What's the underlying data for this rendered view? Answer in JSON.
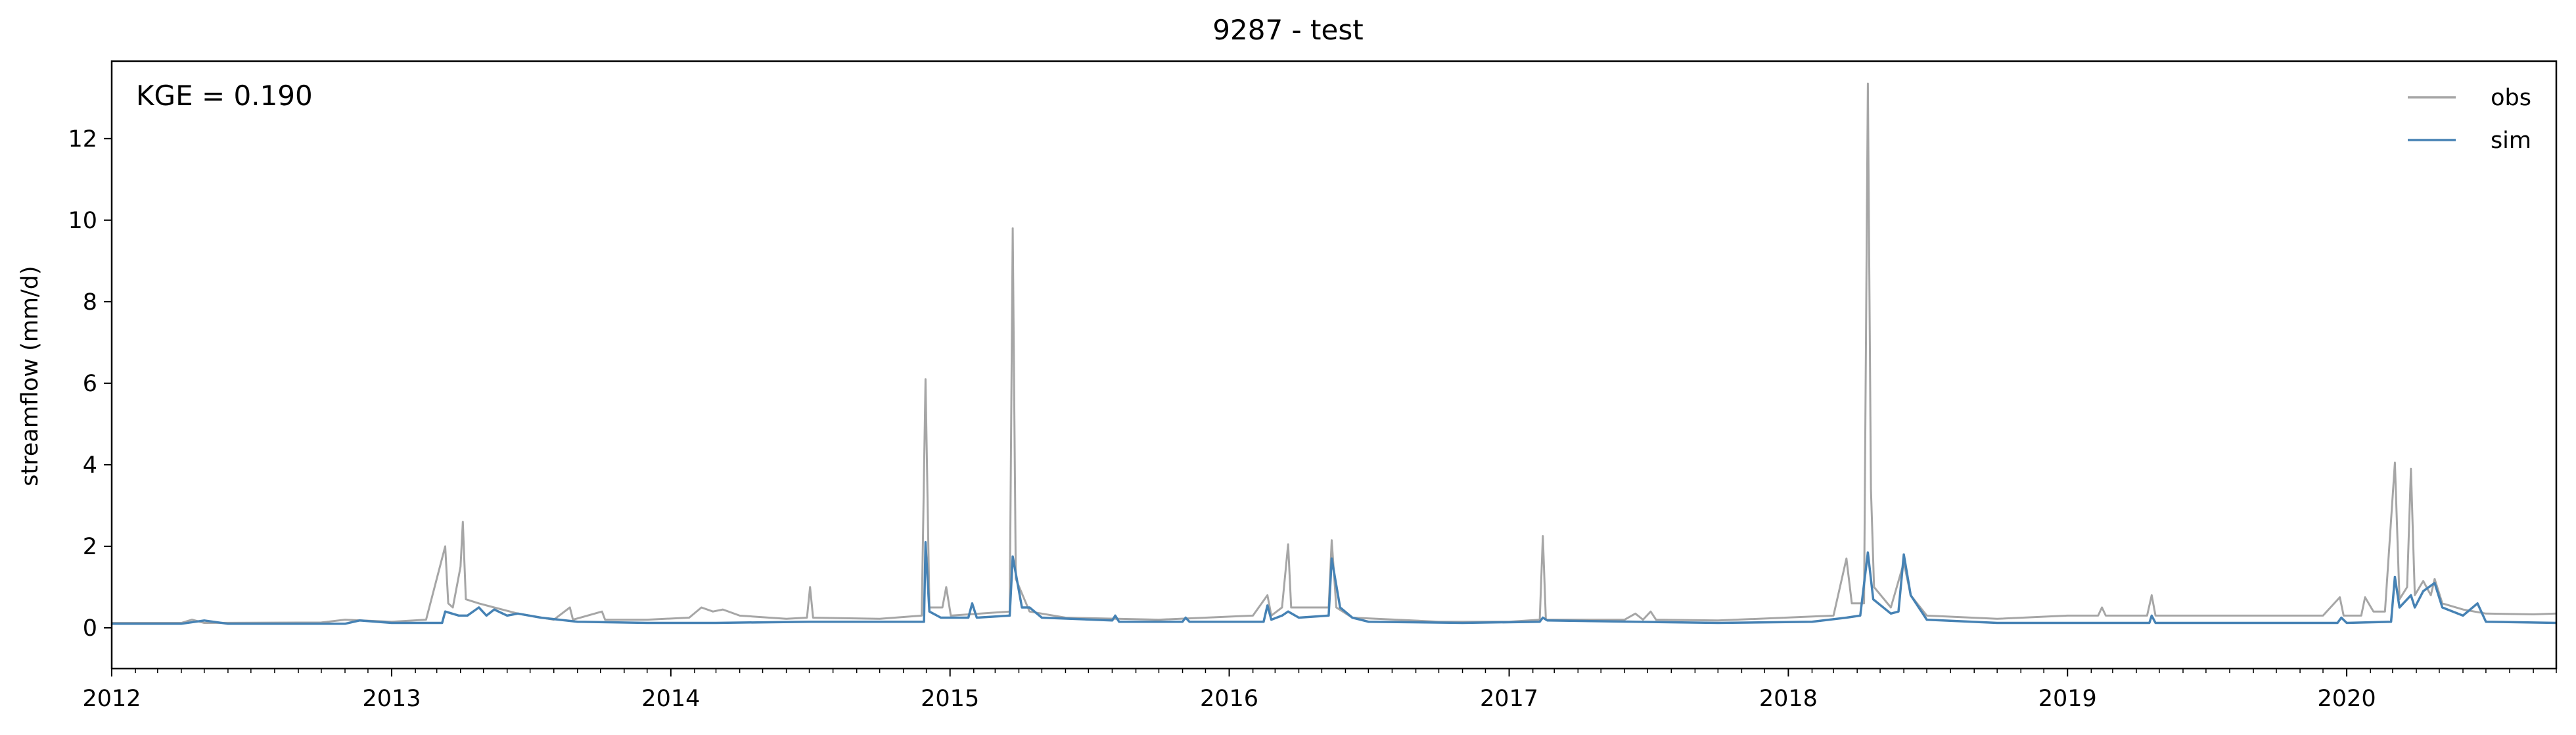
{
  "chart_data": {
    "type": "line",
    "title": "9287 - test",
    "xlabel": "",
    "ylabel": "streamflow (mm/d)",
    "annotation": "KGE = 0.190",
    "xlim": [
      "2012-01-01",
      "2020-10-01"
    ],
    "ylim": [
      -1,
      13.9
    ],
    "x_ticks": [
      "2012",
      "2013",
      "2014",
      "2015",
      "2016",
      "2017",
      "2018",
      "2019",
      "2020"
    ],
    "y_ticks": [
      0,
      2,
      4,
      6,
      8,
      10,
      12
    ],
    "grid": false,
    "legend_position": "top-right",
    "colors": {
      "obs": "#a6a6a6",
      "sim": "#4682b4"
    },
    "series": [
      {
        "name": "obs",
        "color": "#a6a6a6",
        "points": [
          [
            "2012-01-01",
            0.12
          ],
          [
            "2012-04-01",
            0.12
          ],
          [
            "2012-04-15",
            0.2
          ],
          [
            "2012-05-01",
            0.12
          ],
          [
            "2012-10-01",
            0.13
          ],
          [
            "2012-11-01",
            0.2
          ],
          [
            "2013-01-01",
            0.15
          ],
          [
            "2013-02-15",
            0.2
          ],
          [
            "2013-03-12",
            2.0
          ],
          [
            "2013-03-16",
            0.6
          ],
          [
            "2013-03-22",
            0.5
          ],
          [
            "2013-04-01",
            1.5
          ],
          [
            "2013-04-04",
            2.6
          ],
          [
            "2013-04-08",
            0.7
          ],
          [
            "2013-04-25",
            0.6
          ],
          [
            "2013-05-15",
            0.5
          ],
          [
            "2013-06-15",
            0.35
          ],
          [
            "2013-08-01",
            0.2
          ],
          [
            "2013-08-22",
            0.5
          ],
          [
            "2013-08-26",
            0.2
          ],
          [
            "2013-10-03",
            0.4
          ],
          [
            "2013-10-07",
            0.2
          ],
          [
            "2013-12-01",
            0.2
          ],
          [
            "2014-01-25",
            0.25
          ],
          [
            "2014-02-10",
            0.5
          ],
          [
            "2014-02-25",
            0.4
          ],
          [
            "2014-03-10",
            0.45
          ],
          [
            "2014-04-01",
            0.3
          ],
          [
            "2014-06-01",
            0.22
          ],
          [
            "2014-06-28",
            0.25
          ],
          [
            "2014-07-02",
            1.0
          ],
          [
            "2014-07-06",
            0.25
          ],
          [
            "2014-10-01",
            0.22
          ],
          [
            "2014-11-25",
            0.3
          ],
          [
            "2014-11-30",
            6.1
          ],
          [
            "2014-12-05",
            0.5
          ],
          [
            "2014-12-22",
            0.5
          ],
          [
            "2014-12-27",
            1.0
          ],
          [
            "2015-01-02",
            0.3
          ],
          [
            "2015-03-20",
            0.4
          ],
          [
            "2015-03-24",
            9.8
          ],
          [
            "2015-03-28",
            1.2
          ],
          [
            "2015-04-15",
            0.4
          ],
          [
            "2015-06-01",
            0.25
          ],
          [
            "2015-10-01",
            0.2
          ],
          [
            "2016-02-01",
            0.3
          ],
          [
            "2016-02-20",
            0.8
          ],
          [
            "2016-02-25",
            0.3
          ],
          [
            "2016-03-10",
            0.5
          ],
          [
            "2016-03-18",
            2.05
          ],
          [
            "2016-03-22",
            0.5
          ],
          [
            "2016-05-10",
            0.5
          ],
          [
            "2016-05-14",
            2.15
          ],
          [
            "2016-05-20",
            0.5
          ],
          [
            "2016-06-10",
            0.25
          ],
          [
            "2016-10-01",
            0.15
          ],
          [
            "2017-01-01",
            0.15
          ],
          [
            "2017-02-10",
            0.2
          ],
          [
            "2017-02-14",
            2.25
          ],
          [
            "2017-02-18",
            0.2
          ],
          [
            "2017-06-01",
            0.2
          ],
          [
            "2017-06-15",
            0.35
          ],
          [
            "2017-06-25",
            0.2
          ],
          [
            "2017-07-05",
            0.4
          ],
          [
            "2017-07-12",
            0.2
          ],
          [
            "2017-10-01",
            0.18
          ],
          [
            "2018-03-01",
            0.3
          ],
          [
            "2018-03-18",
            1.7
          ],
          [
            "2018-03-25",
            0.6
          ],
          [
            "2018-04-10",
            0.6
          ],
          [
            "2018-04-15",
            13.35
          ],
          [
            "2018-04-19",
            3.4
          ],
          [
            "2018-04-23",
            1.0
          ],
          [
            "2018-05-15",
            0.5
          ],
          [
            "2018-06-01",
            1.6
          ],
          [
            "2018-06-10",
            0.8
          ],
          [
            "2018-07-01",
            0.3
          ],
          [
            "2018-10-01",
            0.22
          ],
          [
            "2019-01-01",
            0.3
          ],
          [
            "2019-02-10",
            0.3
          ],
          [
            "2019-02-15",
            0.5
          ],
          [
            "2019-02-20",
            0.3
          ],
          [
            "2019-04-15",
            0.3
          ],
          [
            "2019-04-21",
            0.8
          ],
          [
            "2019-04-26",
            0.3
          ],
          [
            "2019-10-01",
            0.3
          ],
          [
            "2019-12-01",
            0.3
          ],
          [
            "2019-12-23",
            0.75
          ],
          [
            "2019-12-28",
            0.3
          ],
          [
            "2020-01-20",
            0.3
          ],
          [
            "2020-01-25",
            0.75
          ],
          [
            "2020-02-05",
            0.4
          ],
          [
            "2020-02-20",
            0.4
          ],
          [
            "2020-03-04",
            4.05
          ],
          [
            "2020-03-10",
            0.7
          ],
          [
            "2020-03-20",
            1.0
          ],
          [
            "2020-03-25",
            3.9
          ],
          [
            "2020-03-30",
            0.8
          ],
          [
            "2020-04-10",
            1.15
          ],
          [
            "2020-04-20",
            0.8
          ],
          [
            "2020-04-25",
            1.2
          ],
          [
            "2020-05-05",
            0.6
          ],
          [
            "2020-06-01",
            0.45
          ],
          [
            "2020-07-01",
            0.35
          ],
          [
            "2020-09-01",
            0.33
          ],
          [
            "2020-10-01",
            0.35
          ]
        ]
      },
      {
        "name": "sim",
        "color": "#4682b4",
        "points": [
          [
            "2012-01-01",
            0.1
          ],
          [
            "2012-04-01",
            0.1
          ],
          [
            "2012-05-01",
            0.18
          ],
          [
            "2012-06-01",
            0.1
          ],
          [
            "2012-11-01",
            0.1
          ],
          [
            "2012-11-20",
            0.18
          ],
          [
            "2013-01-01",
            0.12
          ],
          [
            "2013-03-08",
            0.12
          ],
          [
            "2013-03-12",
            0.4
          ],
          [
            "2013-03-30",
            0.3
          ],
          [
            "2013-04-10",
            0.3
          ],
          [
            "2013-04-25",
            0.5
          ],
          [
            "2013-05-05",
            0.3
          ],
          [
            "2013-05-15",
            0.45
          ],
          [
            "2013-06-01",
            0.3
          ],
          [
            "2013-06-15",
            0.35
          ],
          [
            "2013-07-15",
            0.25
          ],
          [
            "2013-09-01",
            0.15
          ],
          [
            "2013-12-01",
            0.12
          ],
          [
            "2014-03-01",
            0.12
          ],
          [
            "2014-07-01",
            0.15
          ],
          [
            "2014-11-20",
            0.15
          ],
          [
            "2014-11-28",
            0.15
          ],
          [
            "2014-11-30",
            2.1
          ],
          [
            "2014-12-05",
            0.4
          ],
          [
            "2014-12-20",
            0.25
          ],
          [
            "2015-01-25",
            0.25
          ],
          [
            "2015-01-30",
            0.6
          ],
          [
            "2015-02-05",
            0.25
          ],
          [
            "2015-03-20",
            0.3
          ],
          [
            "2015-03-24",
            1.75
          ],
          [
            "2015-04-05",
            0.5
          ],
          [
            "2015-04-15",
            0.5
          ],
          [
            "2015-05-01",
            0.25
          ],
          [
            "2015-08-01",
            0.18
          ],
          [
            "2015-08-05",
            0.3
          ],
          [
            "2015-08-10",
            0.15
          ],
          [
            "2015-11-01",
            0.15
          ],
          [
            "2015-11-05",
            0.25
          ],
          [
            "2015-11-10",
            0.15
          ],
          [
            "2016-02-15",
            0.15
          ],
          [
            "2016-02-20",
            0.55
          ],
          [
            "2016-02-25",
            0.2
          ],
          [
            "2016-03-10",
            0.3
          ],
          [
            "2016-03-18",
            0.4
          ],
          [
            "2016-04-01",
            0.25
          ],
          [
            "2016-05-10",
            0.3
          ],
          [
            "2016-05-14",
            1.7
          ],
          [
            "2016-05-25",
            0.5
          ],
          [
            "2016-06-10",
            0.25
          ],
          [
            "2016-07-01",
            0.15
          ],
          [
            "2016-11-01",
            0.12
          ],
          [
            "2017-02-10",
            0.15
          ],
          [
            "2017-02-14",
            0.25
          ],
          [
            "2017-02-20",
            0.18
          ],
          [
            "2017-10-01",
            0.12
          ],
          [
            "2018-02-01",
            0.15
          ],
          [
            "2018-03-18",
            0.25
          ],
          [
            "2018-04-05",
            0.3
          ],
          [
            "2018-04-15",
            1.85
          ],
          [
            "2018-04-22",
            0.7
          ],
          [
            "2018-05-15",
            0.35
          ],
          [
            "2018-05-25",
            0.4
          ],
          [
            "2018-06-01",
            1.8
          ],
          [
            "2018-06-10",
            0.8
          ],
          [
            "2018-07-01",
            0.2
          ],
          [
            "2018-10-01",
            0.12
          ],
          [
            "2019-04-18",
            0.12
          ],
          [
            "2019-04-21",
            0.3
          ],
          [
            "2019-04-26",
            0.12
          ],
          [
            "2019-12-20",
            0.12
          ],
          [
            "2019-12-25",
            0.25
          ],
          [
            "2020-01-01",
            0.12
          ],
          [
            "2020-02-28",
            0.15
          ],
          [
            "2020-03-04",
            1.25
          ],
          [
            "2020-03-10",
            0.5
          ],
          [
            "2020-03-25",
            0.8
          ],
          [
            "2020-03-30",
            0.5
          ],
          [
            "2020-04-10",
            0.9
          ],
          [
            "2020-04-25",
            1.1
          ],
          [
            "2020-05-05",
            0.5
          ],
          [
            "2020-06-01",
            0.3
          ],
          [
            "2020-06-20",
            0.6
          ],
          [
            "2020-07-01",
            0.15
          ],
          [
            "2020-10-01",
            0.12
          ]
        ]
      }
    ]
  }
}
